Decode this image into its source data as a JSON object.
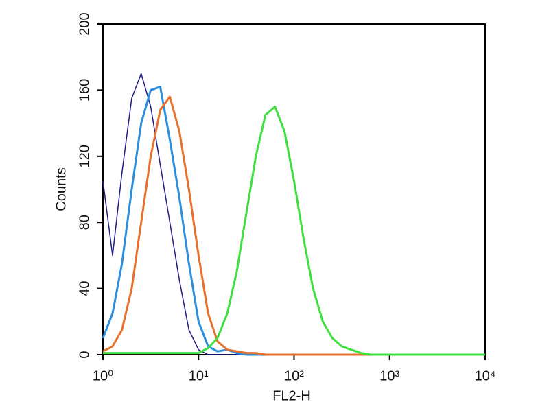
{
  "chart_data": {
    "type": "line",
    "xlabel": "FL2-H",
    "ylabel": "Counts",
    "x": [
      1,
      1.26,
      1.58,
      2,
      2.51,
      3.16,
      3.98,
      5.01,
      6.31,
      7.94,
      10,
      12.6,
      15.8,
      20,
      25.1,
      31.6,
      39.8,
      50.1,
      63.1,
      79.4,
      100,
      126,
      158,
      200,
      251,
      316,
      398,
      501,
      631,
      794,
      1000,
      3162,
      10000
    ],
    "series": [
      {
        "color": "#1c1c8a",
        "values": [
          105,
          60,
          110,
          155,
          170,
          150,
          115,
          80,
          45,
          15,
          3,
          0,
          0,
          0,
          0,
          0,
          0,
          0,
          0,
          0,
          0,
          0,
          0,
          0,
          0,
          0,
          0,
          0,
          0,
          0,
          0,
          0,
          0
        ]
      },
      {
        "color": "#2b8fe0",
        "values": [
          10,
          25,
          55,
          100,
          140,
          160,
          162,
          130,
          95,
          55,
          20,
          5,
          2,
          3,
          1,
          0,
          0,
          0,
          0,
          0,
          0,
          0,
          0,
          0,
          0,
          0,
          0,
          0,
          0,
          0,
          0,
          0,
          0
        ]
      },
      {
        "color": "#e8702a",
        "values": [
          2,
          5,
          15,
          40,
          80,
          120,
          148,
          156,
          135,
          100,
          60,
          25,
          8,
          3,
          2,
          1,
          1,
          0,
          0,
          0,
          0,
          0,
          0,
          0,
          0,
          0,
          0,
          0,
          0,
          0,
          0,
          0,
          0
        ]
      },
      {
        "color": "#3ee03e",
        "values": [
          1,
          1,
          1,
          1,
          1,
          1,
          1,
          1,
          1,
          1,
          1,
          4,
          10,
          25,
          50,
          85,
          120,
          145,
          150,
          135,
          105,
          70,
          40,
          20,
          10,
          5,
          3,
          1,
          0,
          0,
          0,
          0,
          0
        ]
      }
    ],
    "xscale": "log",
    "xlim": [
      1,
      10000
    ],
    "xticks": [
      {
        "value": 1,
        "label": "10⁰"
      },
      {
        "value": 10,
        "label": "10¹"
      },
      {
        "value": 100,
        "label": "10²"
      },
      {
        "value": 1000,
        "label": "10³"
      },
      {
        "value": 10000,
        "label": "10⁴"
      }
    ],
    "ylim": [
      0,
      200
    ],
    "yticks": [
      0,
      40,
      80,
      120,
      160,
      200
    ]
  }
}
